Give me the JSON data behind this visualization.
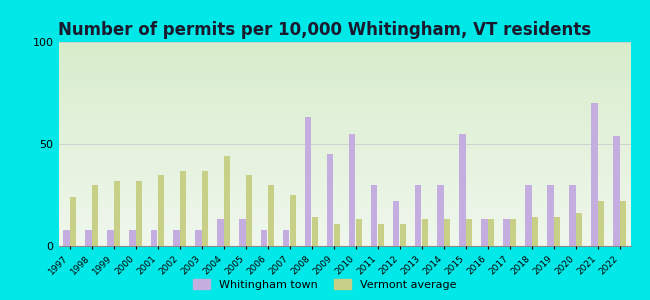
{
  "years": [
    1997,
    1998,
    1999,
    2000,
    2001,
    2002,
    2003,
    2004,
    2005,
    2006,
    2007,
    2008,
    2009,
    2010,
    2011,
    2012,
    2013,
    2014,
    2015,
    2016,
    2017,
    2018,
    2019,
    2020,
    2021,
    2022
  ],
  "whitingham": [
    8,
    8,
    8,
    8,
    8,
    8,
    8,
    13,
    13,
    8,
    8,
    63,
    45,
    55,
    30,
    22,
    30,
    30,
    55,
    13,
    13,
    30,
    30,
    30,
    70,
    54
  ],
  "vermont": [
    24,
    30,
    32,
    32,
    35,
    37,
    37,
    44,
    35,
    30,
    25,
    14,
    11,
    13,
    11,
    11,
    13,
    13,
    13,
    13,
    13,
    14,
    14,
    16,
    22,
    22
  ],
  "title": "Number of permits per 10,000 Whitingham, VT residents",
  "whitingham_color": "#c4aee0",
  "vermont_color": "#c8cf86",
  "ylim": [
    0,
    100
  ],
  "yticks": [
    0,
    50,
    100
  ],
  "bg_color_outer": "#00e8e8",
  "grid_color": "#cccccc",
  "legend_whitingham": "Whitingham town",
  "legend_vermont": "Vermont average",
  "title_fontsize": 12,
  "bar_width": 0.28
}
